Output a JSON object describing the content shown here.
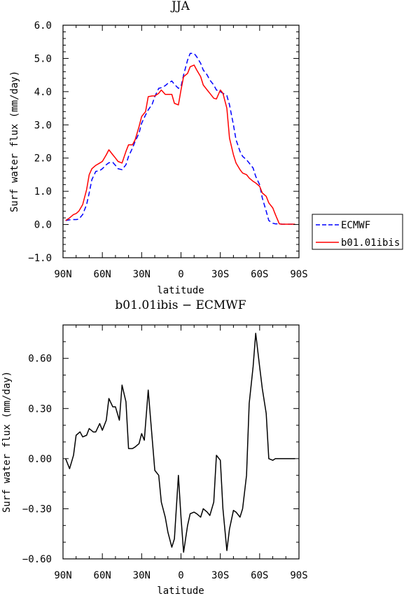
{
  "chart_data": [
    {
      "type": "line",
      "title": "JJA",
      "xlabel": "latitude",
      "ylabel": "Surf water flux (mm/day)",
      "xlim": [
        90,
        -90
      ],
      "ylim": [
        -1.0,
        6.0
      ],
      "x_ticks": [
        90,
        60,
        30,
        0,
        -30,
        -60,
        -90
      ],
      "x_tick_labels": [
        "90N",
        "60N",
        "30N",
        "0",
        "30S",
        "60S",
        "90S"
      ],
      "y_ticks": [
        -1.0,
        0.0,
        1.0,
        2.0,
        3.0,
        4.0,
        5.0,
        6.0
      ],
      "y_tick_labels": [
        "−1.0",
        "0.0",
        "1.0",
        "2.0",
        "3.0",
        "4.0",
        "5.0",
        "6.0"
      ],
      "legend_position": "right",
      "series": [
        {
          "name": "ECMWF",
          "color": "#0000ff",
          "dash": "dashed",
          "x": [
            88,
            85,
            82,
            80,
            78,
            75,
            72,
            70,
            68,
            65,
            62,
            60,
            57,
            55,
            52,
            50,
            48,
            45,
            42,
            40,
            37,
            35,
            32,
            30,
            27,
            25,
            22,
            20,
            17,
            15,
            12,
            10,
            7,
            5,
            2,
            0,
            -2,
            -5,
            -7,
            -10,
            -12,
            -15,
            -17,
            -20,
            -22,
            -25,
            -27,
            -30,
            -32,
            -35,
            -37,
            -40,
            -42,
            -45,
            -47,
            -50,
            -52,
            -55,
            -57,
            -60,
            -62,
            -65,
            -67,
            -70,
            -72,
            -75,
            -77,
            -80,
            -82,
            -85,
            -87
          ],
          "values": [
            0.12,
            0.14,
            0.15,
            0.15,
            0.16,
            0.3,
            0.6,
            0.95,
            1.35,
            1.6,
            1.62,
            1.68,
            1.8,
            1.86,
            1.87,
            1.78,
            1.68,
            1.65,
            1.8,
            2.05,
            2.3,
            2.5,
            2.75,
            3.05,
            3.3,
            3.45,
            3.62,
            3.85,
            4.1,
            4.12,
            4.18,
            4.25,
            4.32,
            4.22,
            4.1,
            4.15,
            4.5,
            4.95,
            5.15,
            5.15,
            5.05,
            4.85,
            4.65,
            4.5,
            4.35,
            4.2,
            4.05,
            4.0,
            3.95,
            3.88,
            3.6,
            3.0,
            2.55,
            2.2,
            2.05,
            1.95,
            1.85,
            1.7,
            1.45,
            1.2,
            0.8,
            0.4,
            0.12,
            0.04,
            0.02,
            0.02,
            0.01,
            0.01,
            0.01,
            0.01,
            0.01
          ]
        },
        {
          "name": "b01.01ibis",
          "color": "#ff0000",
          "dash": "solid",
          "x": [
            88,
            85,
            82,
            80,
            78,
            75,
            72,
            70,
            68,
            65,
            62,
            60,
            57,
            55,
            52,
            50,
            48,
            45,
            42,
            40,
            37,
            35,
            32,
            30,
            27,
            25,
            22,
            20,
            17,
            15,
            12,
            10,
            7,
            5,
            2,
            0,
            -2,
            -5,
            -7,
            -10,
            -12,
            -15,
            -17,
            -20,
            -22,
            -25,
            -27,
            -30,
            -32,
            -35,
            -37,
            -40,
            -42,
            -45,
            -47,
            -50,
            -52,
            -55,
            -57,
            -60,
            -62,
            -65,
            -67,
            -70,
            -72,
            -75,
            -77,
            -80,
            -82,
            -85,
            -87
          ],
          "values": [
            0.12,
            0.2,
            0.3,
            0.33,
            0.4,
            0.6,
            1.05,
            1.5,
            1.68,
            1.78,
            1.85,
            1.9,
            2.1,
            2.25,
            2.1,
            2.0,
            1.9,
            1.85,
            2.2,
            2.4,
            2.4,
            2.55,
            2.95,
            3.25,
            3.4,
            3.85,
            3.87,
            3.87,
            3.95,
            4.05,
            3.92,
            3.92,
            3.92,
            3.65,
            3.6,
            4.05,
            4.45,
            4.55,
            4.75,
            4.8,
            4.65,
            4.45,
            4.2,
            4.05,
            3.95,
            3.8,
            3.78,
            4.05,
            3.95,
            3.5,
            2.6,
            2.1,
            1.85,
            1.65,
            1.55,
            1.5,
            1.4,
            1.3,
            1.25,
            1.15,
            0.95,
            0.85,
            0.65,
            0.5,
            0.3,
            0.02,
            0.01,
            0.01,
            0.01,
            0.01,
            0.01
          ]
        }
      ]
    },
    {
      "type": "line",
      "title": "b01.01ibis − ECMWF",
      "xlabel": "latitude",
      "ylabel": "Surf water flux (mm/day)",
      "xlim": [
        90,
        -90
      ],
      "ylim": [
        -0.6,
        0.8
      ],
      "x_ticks": [
        90,
        60,
        30,
        0,
        -30,
        -60,
        -90
      ],
      "x_tick_labels": [
        "90N",
        "60N",
        "30N",
        "0",
        "30S",
        "60S",
        "90S"
      ],
      "y_ticks": [
        -0.6,
        -0.3,
        0.0,
        0.3,
        0.6
      ],
      "y_tick_labels": [
        "−0.60",
        "−0.30",
        "0.00",
        "0.30",
        "0.60"
      ],
      "series": [
        {
          "color": "#000000",
          "x": [
            88,
            85,
            82,
            80,
            77,
            75,
            72,
            70,
            67,
            65,
            62,
            60,
            57,
            55,
            52,
            50,
            47,
            45,
            42,
            40,
            37,
            35,
            32,
            30,
            28,
            25,
            23,
            20,
            17,
            15,
            12,
            10,
            7,
            5,
            2,
            0,
            -2,
            -5,
            -7,
            -10,
            -12,
            -15,
            -17,
            -20,
            -22,
            -25,
            -27,
            -30,
            -32,
            -35,
            -37,
            -40,
            -42,
            -45,
            -47,
            -50,
            -52,
            -55,
            -57,
            -60,
            -62,
            -65,
            -67,
            -70,
            -72,
            -75,
            -77,
            -80,
            -82,
            -85,
            -87
          ],
          "values": [
            0.0,
            -0.06,
            0.02,
            0.14,
            0.16,
            0.13,
            0.14,
            0.18,
            0.16,
            0.16,
            0.21,
            0.17,
            0.23,
            0.36,
            0.31,
            0.31,
            0.23,
            0.44,
            0.34,
            0.06,
            0.06,
            0.07,
            0.09,
            0.15,
            0.11,
            0.41,
            0.22,
            -0.07,
            -0.1,
            -0.26,
            -0.35,
            -0.44,
            -0.53,
            -0.48,
            -0.1,
            -0.35,
            -0.56,
            -0.4,
            -0.33,
            -0.32,
            -0.33,
            -0.35,
            -0.3,
            -0.32,
            -0.34,
            -0.26,
            0.02,
            -0.01,
            -0.3,
            -0.55,
            -0.42,
            -0.31,
            -0.32,
            -0.35,
            -0.3,
            -0.1,
            0.33,
            0.55,
            0.75,
            0.55,
            0.42,
            0.27,
            0.0,
            -0.01,
            0.0,
            0.0,
            0.0,
            0.0,
            0.0,
            0.0,
            0.0
          ]
        }
      ]
    }
  ]
}
